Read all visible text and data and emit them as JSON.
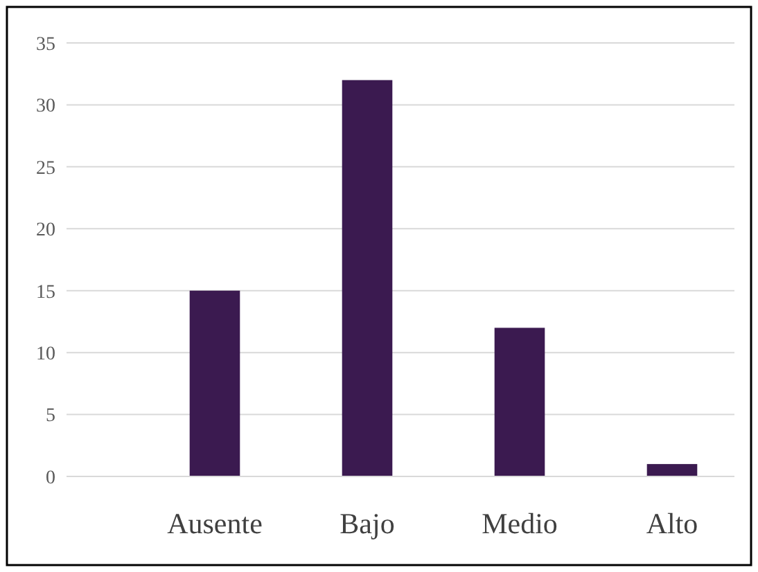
{
  "chart_data": {
    "type": "bar",
    "categories": [
      "Ausente",
      "Bajo",
      "Medio",
      "Alto"
    ],
    "values": [
      15,
      32,
      12,
      1
    ],
    "color": "#3b1a50",
    "ylim": [
      0,
      35
    ],
    "yticks": [
      0,
      5,
      10,
      15,
      20,
      25,
      30,
      35
    ],
    "grid": "y"
  }
}
